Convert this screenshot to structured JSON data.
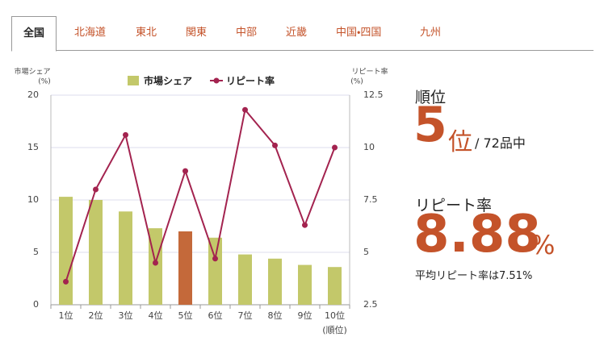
{
  "tabs": [
    "全国",
    "北海道",
    "東北",
    "関東",
    "中部",
    "近畿",
    "中国・四国",
    "九州"
  ],
  "active_tab": 0,
  "chart_data": {
    "type": "bar-line",
    "y_label": "市場シェア",
    "y_unit": "(%)",
    "y2_label": "リピート率",
    "y2_unit": "(%)",
    "x_unit": "(順位)",
    "categories": [
      "1位",
      "2位",
      "3位",
      "4位",
      "5位",
      "6位",
      "7位",
      "8位",
      "9位",
      "10位"
    ],
    "series": [
      {
        "name": "市場シェア",
        "type": "bar",
        "color": "#c3c86a",
        "colors": [
          "#c3c86a",
          "#c3c86a",
          "#c3c86a",
          "#c3c86a",
          "#c4693a",
          "#c3c86a",
          "#c3c86a",
          "#c3c86a",
          "#c3c86a",
          "#c3c86a"
        ],
        "values": [
          10.3,
          10.0,
          8.9,
          7.3,
          7.0,
          6.4,
          4.8,
          4.4,
          3.8,
          3.6
        ]
      },
      {
        "name": "リピート率",
        "type": "line",
        "axis": "y2",
        "color": "#a3234f",
        "values": [
          3.6,
          8.0,
          10.6,
          4.5,
          8.88,
          4.7,
          11.8,
          10.1,
          6.3,
          10.0
        ]
      }
    ],
    "ylim": [
      0,
      20
    ],
    "yticks": [
      0,
      5,
      10,
      15,
      20
    ],
    "y2lim": [
      2.5,
      12.5
    ],
    "y2ticks": [
      2.5,
      5,
      7.5,
      10,
      12.5
    ],
    "grid": true
  },
  "summary": {
    "rank_label": "順位",
    "rank": "5",
    "rank_unit": "位",
    "rank_total": "/ 72品中",
    "repeat_label": "リピート率",
    "repeat_value": "8.88",
    "repeat_unit": "%",
    "average_note": "平均リピート率は7.51%"
  }
}
